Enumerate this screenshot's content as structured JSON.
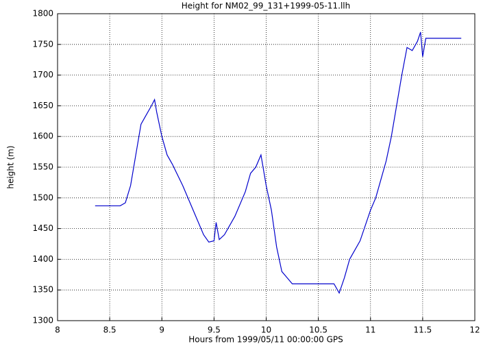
{
  "chart_data": {
    "type": "line",
    "title": "Height for NM02_99_131+1999-05-11.llh",
    "x_label": "Hours from 1999/05/11 00:00:00 GPS",
    "y_label": "height (m)",
    "x": [
      8.36,
      8.6,
      8.65,
      8.7,
      8.75,
      8.8,
      8.85,
      8.9,
      8.93,
      8.95,
      9.0,
      9.05,
      9.1,
      9.2,
      9.3,
      9.4,
      9.45,
      9.5,
      9.52,
      9.55,
      9.6,
      9.7,
      9.8,
      9.85,
      9.9,
      9.95,
      10.0,
      10.05,
      10.1,
      10.15,
      10.2,
      10.25,
      10.65,
      10.7,
      10.75,
      10.8,
      10.9,
      11.0,
      11.05,
      11.1,
      11.15,
      11.2,
      11.25,
      11.3,
      11.35,
      11.4,
      11.45,
      11.48,
      11.5,
      11.53,
      11.87
    ],
    "series": [
      {
        "color": "#0000cc",
        "values": [
          1487,
          1487,
          1492,
          1520,
          1570,
          1620,
          1635,
          1650,
          1660,
          1640,
          1600,
          1570,
          1555,
          1520,
          1480,
          1440,
          1428,
          1430,
          1460,
          1432,
          1440,
          1470,
          1510,
          1540,
          1550,
          1570,
          1520,
          1480,
          1420,
          1380,
          1370,
          1360,
          1360,
          1345,
          1370,
          1400,
          1430,
          1480,
          1500,
          1530,
          1560,
          1600,
          1650,
          1700,
          1745,
          1740,
          1755,
          1770,
          1730,
          1760,
          1760
        ]
      }
    ],
    "xlim": [
      8,
      12
    ],
    "ylim": [
      1300,
      1800
    ],
    "xticks": [
      8,
      8.5,
      9,
      9.5,
      10,
      10.5,
      11,
      11.5,
      12
    ],
    "yticks": [
      1300,
      1350,
      1400,
      1450,
      1500,
      1550,
      1600,
      1650,
      1700,
      1750,
      1800
    ],
    "grid": true
  }
}
